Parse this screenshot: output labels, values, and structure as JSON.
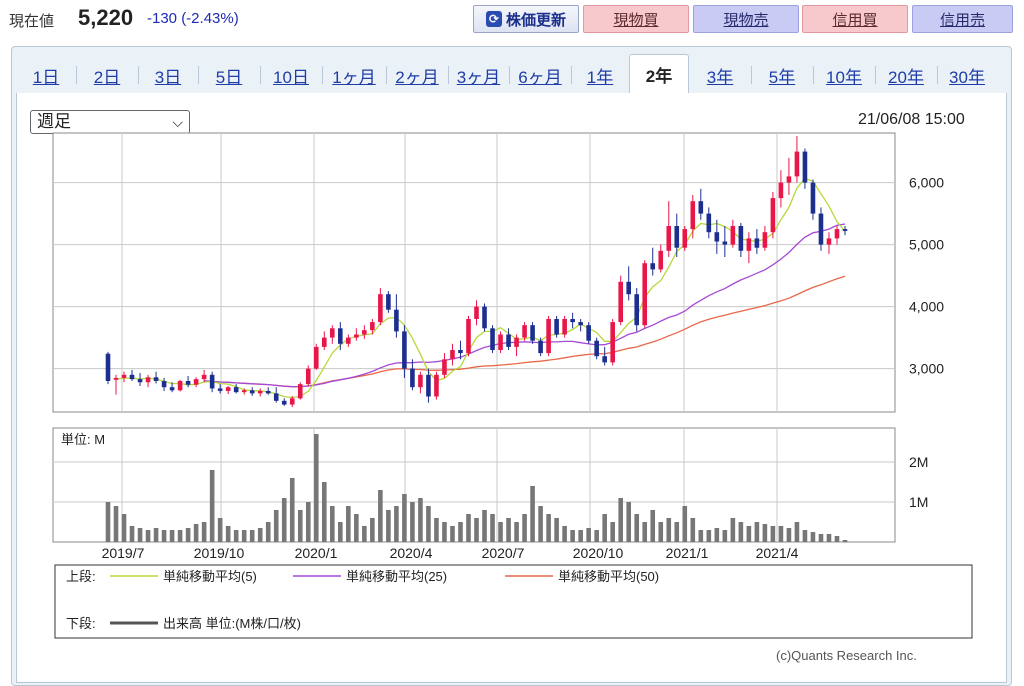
{
  "header": {
    "price_label": "現在値",
    "price_value": "5,220",
    "price_change": "-130 (-2.43%)",
    "refresh_label": "株価更新",
    "buttons": [
      "現物買",
      "現物売",
      "信用買",
      "信用売"
    ]
  },
  "tabs": [
    "1日",
    "2日",
    "3日",
    "5日",
    "10日",
    "1ヶ月",
    "2ヶ月",
    "3ヶ月",
    "6ヶ月",
    "1年",
    "2年",
    "3年",
    "5年",
    "10年",
    "20年",
    "30年"
  ],
  "active_tab": "2年",
  "period_select": "週足",
  "timestamp": "21/06/08 15:00",
  "copyright": "(c)Quants Research Inc.",
  "colors": {
    "up": "#e8174a",
    "down": "#1c2f8f",
    "ma5": "#b5d93a",
    "ma25": "#a64ad6",
    "ma50": "#e8674a",
    "volume": "#777777"
  },
  "chart_data": {
    "type": "candlestick",
    "price_axis": {
      "ticks": [
        3000,
        4000,
        5000,
        6000
      ],
      "labels": [
        "3,000",
        "4,000",
        "5,000",
        "6,000"
      ]
    },
    "volume_axis": {
      "ticks": [
        1,
        2
      ],
      "labels": [
        "1M",
        "2M"
      ],
      "unit_label": "単位: M"
    },
    "x_labels": [
      "2019/7",
      "2019/10",
      "2020/1",
      "2020/4",
      "2020/7",
      "2020/10",
      "2021/1",
      "2021/4"
    ],
    "legend": {
      "upper_label": "上段:",
      "lower_label": "下段:",
      "ma5": "単純移動平均(5)",
      "ma25": "単純移動平均(25)",
      "ma50": "単純移動平均(50)",
      "volume": "出来高 単位:(M株/口/枚)"
    },
    "candles": [
      [
        3240,
        3270,
        2750,
        2800
      ],
      [
        2820,
        2900,
        2580,
        2850
      ],
      [
        2850,
        2950,
        2780,
        2900
      ],
      [
        2900,
        2980,
        2800,
        2830
      ],
      [
        2830,
        2930,
        2720,
        2780
      ],
      [
        2780,
        2900,
        2700,
        2860
      ],
      [
        2860,
        2950,
        2760,
        2800
      ],
      [
        2800,
        2850,
        2640,
        2700
      ],
      [
        2700,
        2780,
        2620,
        2650
      ],
      [
        2650,
        2820,
        2630,
        2800
      ],
      [
        2800,
        2880,
        2700,
        2740
      ],
      [
        2740,
        2860,
        2700,
        2830
      ],
      [
        2830,
        2980,
        2780,
        2900
      ],
      [
        2900,
        2950,
        2620,
        2680
      ],
      [
        2680,
        2750,
        2600,
        2640
      ],
      [
        2640,
        2720,
        2590,
        2700
      ],
      [
        2700,
        2750,
        2600,
        2620
      ],
      [
        2620,
        2680,
        2580,
        2650
      ],
      [
        2650,
        2700,
        2560,
        2600
      ],
      [
        2600,
        2680,
        2550,
        2640
      ],
      [
        2640,
        2700,
        2580,
        2600
      ],
      [
        2600,
        2700,
        2450,
        2480
      ],
      [
        2480,
        2520,
        2400,
        2420
      ],
      [
        2420,
        2560,
        2380,
        2520
      ],
      [
        2520,
        2780,
        2500,
        2750
      ],
      [
        2750,
        3050,
        2720,
        3000
      ],
      [
        3000,
        3400,
        2980,
        3350
      ],
      [
        3350,
        3600,
        3300,
        3500
      ],
      [
        3500,
        3700,
        3400,
        3650
      ],
      [
        3650,
        3750,
        3300,
        3400
      ],
      [
        3400,
        3550,
        3350,
        3500
      ],
      [
        3500,
        3650,
        3450,
        3550
      ],
      [
        3550,
        3700,
        3480,
        3620
      ],
      [
        3620,
        3800,
        3550,
        3750
      ],
      [
        3750,
        4300,
        3700,
        4200
      ],
      [
        4200,
        4250,
        3900,
        3950
      ],
      [
        3950,
        4200,
        3500,
        3600
      ],
      [
        3600,
        3700,
        2850,
        3000
      ],
      [
        3000,
        3150,
        2650,
        2700
      ],
      [
        2700,
        2950,
        2600,
        2900
      ],
      [
        2900,
        3000,
        2450,
        2550
      ],
      [
        2550,
        2950,
        2500,
        2900
      ],
      [
        2900,
        3250,
        2850,
        3150
      ],
      [
        3150,
        3400,
        3050,
        3300
      ],
      [
        3300,
        3450,
        3150,
        3250
      ],
      [
        3250,
        3850,
        3200,
        3800
      ],
      [
        3800,
        4100,
        3700,
        4000
      ],
      [
        4000,
        4050,
        3600,
        3650
      ],
      [
        3650,
        3700,
        3250,
        3300
      ],
      [
        3300,
        3600,
        3250,
        3550
      ],
      [
        3550,
        3650,
        3300,
        3350
      ],
      [
        3350,
        3550,
        3200,
        3500
      ],
      [
        3500,
        3750,
        3450,
        3700
      ],
      [
        3700,
        3750,
        3400,
        3450
      ],
      [
        3450,
        3500,
        3200,
        3250
      ],
      [
        3250,
        3850,
        3200,
        3800
      ],
      [
        3800,
        3850,
        3500,
        3550
      ],
      [
        3550,
        3850,
        3500,
        3800
      ],
      [
        3800,
        3900,
        3650,
        3750
      ],
      [
        3750,
        3800,
        3600,
        3700
      ],
      [
        3700,
        3750,
        3400,
        3450
      ],
      [
        3450,
        3500,
        3150,
        3200
      ],
      [
        3200,
        3350,
        3050,
        3100
      ],
      [
        3100,
        3800,
        3050,
        3750
      ],
      [
        3750,
        4500,
        3700,
        4400
      ],
      [
        4400,
        4650,
        4100,
        4200
      ],
      [
        4200,
        4300,
        3600,
        3700
      ],
      [
        3700,
        4750,
        3650,
        4700
      ],
      [
        4700,
        4950,
        4500,
        4600
      ],
      [
        4600,
        5000,
        4550,
        4900
      ],
      [
        4900,
        5700,
        4800,
        5300
      ],
      [
        5300,
        5500,
        4800,
        4950
      ],
      [
        4950,
        5300,
        4900,
        5250
      ],
      [
        5250,
        5800,
        5100,
        5700
      ],
      [
        5700,
        5900,
        5400,
        5500
      ],
      [
        5500,
        5600,
        5100,
        5200
      ],
      [
        5200,
        5400,
        4850,
        5050
      ],
      [
        5050,
        5300,
        4800,
        5000
      ],
      [
        5000,
        5400,
        4950,
        5300
      ],
      [
        5300,
        5350,
        4800,
        4900
      ],
      [
        4900,
        5200,
        4700,
        5100
      ],
      [
        5100,
        5250,
        4850,
        4950
      ],
      [
        4950,
        5300,
        4900,
        5200
      ],
      [
        5200,
        5850,
        5100,
        5750
      ],
      [
        5750,
        6200,
        5600,
        6000
      ],
      [
        6000,
        6400,
        5800,
        6100
      ],
      [
        6100,
        6750,
        6000,
        6500
      ],
      [
        6500,
        6550,
        5900,
        6000
      ],
      [
        6000,
        6050,
        5400,
        5500
      ],
      [
        5500,
        5600,
        4900,
        5000
      ],
      [
        5000,
        5200,
        4850,
        5100
      ],
      [
        5100,
        5300,
        5000,
        5250
      ],
      [
        5250,
        5300,
        5150,
        5220
      ]
    ],
    "volume": [
      1.0,
      0.9,
      0.7,
      0.4,
      0.35,
      0.3,
      0.35,
      0.3,
      0.3,
      0.3,
      0.35,
      0.45,
      0.5,
      1.8,
      0.6,
      0.4,
      0.3,
      0.3,
      0.3,
      0.35,
      0.5,
      0.8,
      1.1,
      1.6,
      0.8,
      1.0,
      2.7,
      1.5,
      0.9,
      0.5,
      0.9,
      0.7,
      0.4,
      0.6,
      1.3,
      0.8,
      0.9,
      1.2,
      1.0,
      1.1,
      0.9,
      0.6,
      0.5,
      0.4,
      0.5,
      0.7,
      0.6,
      0.8,
      0.7,
      0.5,
      0.6,
      0.5,
      0.7,
      1.4,
      0.9,
      0.7,
      0.6,
      0.4,
      0.3,
      0.3,
      0.35,
      0.3,
      0.7,
      0.5,
      1.1,
      1.0,
      0.7,
      0.5,
      0.8,
      0.5,
      0.6,
      0.5,
      0.9,
      0.6,
      0.3,
      0.3,
      0.35,
      0.3,
      0.6,
      0.5,
      0.4,
      0.5,
      0.45,
      0.4,
      0.4,
      0.35,
      0.5,
      0.3,
      0.25,
      0.2,
      0.2,
      0.15,
      0.05
    ]
  }
}
